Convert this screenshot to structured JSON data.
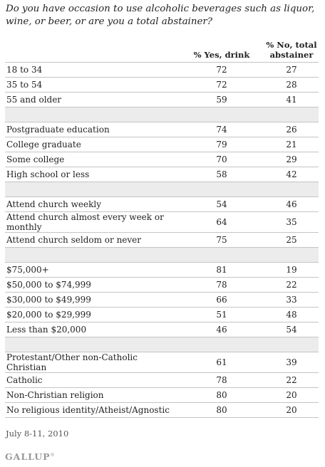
{
  "question": "Do you have occasion to use alcoholic beverages such as liquor, wine, or beer, or are you a total abstainer?",
  "date": "July 8-11, 2010",
  "logo": "GALLUP",
  "chart_data": {
    "type": "table",
    "title": "Do you have occasion to use alcoholic beverages such as liquor, wine, or beer, or are you a total abstainer?",
    "columns": [
      "% Yes, drink",
      "% No, total abstainer"
    ],
    "groups": [
      {
        "rows": [
          {
            "label": "18 to 34",
            "yes": 72,
            "no": 27
          },
          {
            "label": "35 to 54",
            "yes": 72,
            "no": 28
          },
          {
            "label": "55 and older",
            "yes": 59,
            "no": 41
          }
        ]
      },
      {
        "rows": [
          {
            "label": "Postgraduate education",
            "yes": 74,
            "no": 26
          },
          {
            "label": "College graduate",
            "yes": 79,
            "no": 21
          },
          {
            "label": "Some college",
            "yes": 70,
            "no": 29
          },
          {
            "label": "High school or less",
            "yes": 58,
            "no": 42
          }
        ]
      },
      {
        "rows": [
          {
            "label": "Attend church weekly",
            "yes": 54,
            "no": 46
          },
          {
            "label": "Attend church almost every week or monthly",
            "yes": 64,
            "no": 35
          },
          {
            "label": "Attend church seldom or never",
            "yes": 75,
            "no": 25
          }
        ]
      },
      {
        "rows": [
          {
            "label": "$75,000+",
            "yes": 81,
            "no": 19
          },
          {
            "label": "$50,000 to $74,999",
            "yes": 78,
            "no": 22
          },
          {
            "label": "$30,000 to $49,999",
            "yes": 66,
            "no": 33
          },
          {
            "label": "$20,000 to $29,999",
            "yes": 51,
            "no": 48
          },
          {
            "label": "Less than $20,000",
            "yes": 46,
            "no": 54
          }
        ]
      },
      {
        "rows": [
          {
            "label": "Protestant/Other non-Catholic Christian",
            "yes": 61,
            "no": 39
          },
          {
            "label": "Catholic",
            "yes": 78,
            "no": 22
          },
          {
            "label": "Non-Christian religion",
            "yes": 80,
            "no": 20
          },
          {
            "label": "No religious identity/Atheist/Agnostic",
            "yes": 80,
            "no": 20
          }
        ]
      }
    ]
  }
}
